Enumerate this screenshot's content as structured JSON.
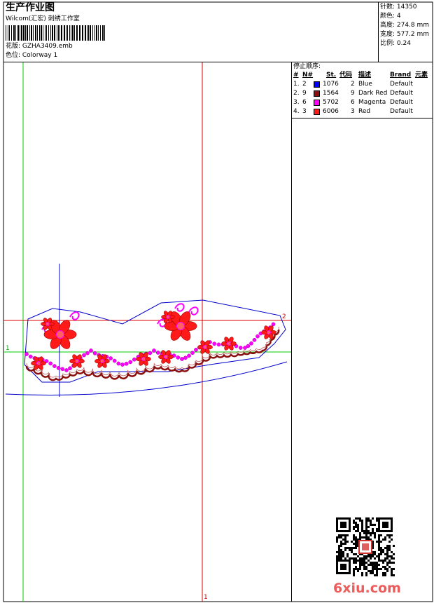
{
  "header": {
    "title": "生产作业图",
    "studio": "Wilcom(汇宏) 刺绣工作室",
    "design": "花版: GZHA3409.emb",
    "colorway": "色位: Colorway 1"
  },
  "stats": [
    "针数: 14350",
    "颜色: 4",
    "高度: 274.8 mm",
    "宽度: 577.2 mm",
    "比例: 0.24"
  ],
  "stop_sequence": {
    "label": "停止顺序:",
    "columns": [
      "#",
      "N#",
      "St.",
      "代码",
      "描述",
      "Brand",
      "元素"
    ],
    "rows": [
      {
        "cells": [
          "1.",
          "2",
          "1076",
          "2",
          "Blue",
          "Default"
        ],
        "color": "#0000ff"
      },
      {
        "cells": [
          "2.",
          "9",
          "1564",
          "9",
          "Dark Red",
          "Default"
        ],
        "color": "#8b1010"
      },
      {
        "cells": [
          "3.",
          "6",
          "5702",
          "6",
          "Magenta",
          "Default"
        ],
        "color": "#ff00ff"
      },
      {
        "cells": [
          "4.",
          "3",
          "6006",
          "3",
          "Red",
          "Default"
        ],
        "color": "#ff1a1a"
      }
    ]
  },
  "markers": [
    "1",
    "2",
    "1"
  ],
  "watermark": "6xiu.com"
}
